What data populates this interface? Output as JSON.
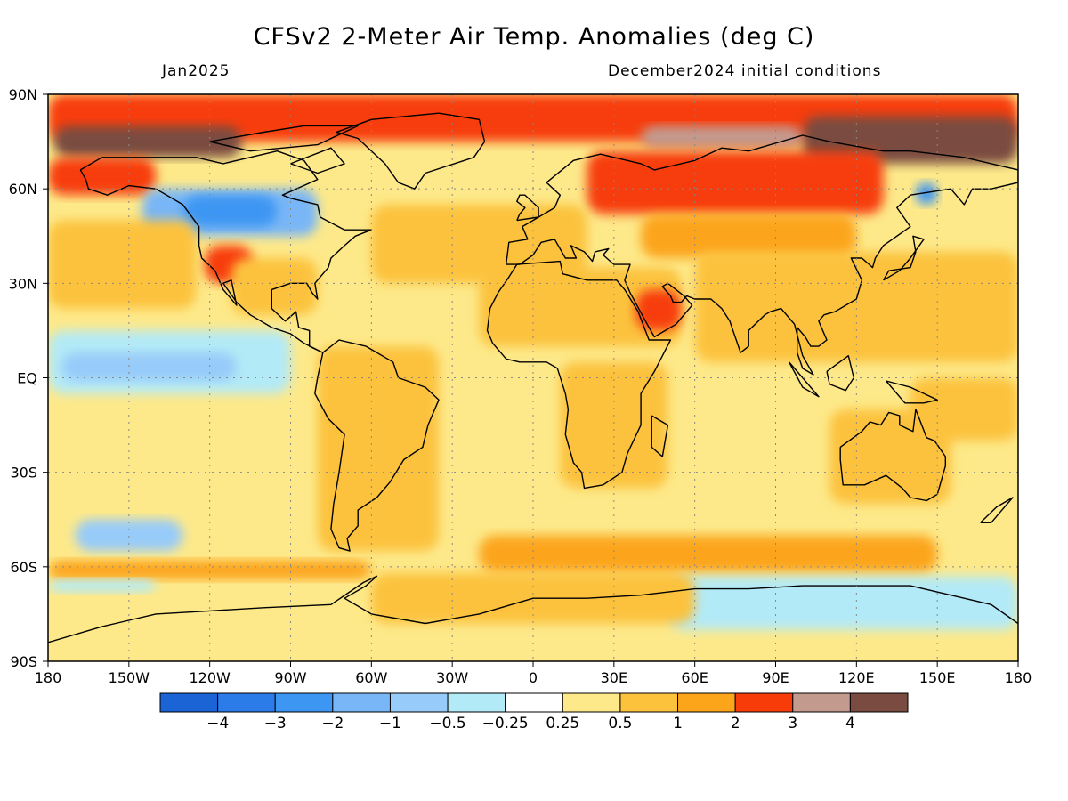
{
  "title": "CFSv2 2-Meter Air Temp. Anomalies (deg C)",
  "valid_month": "Jan2025",
  "initial_conditions": "December2024 initial conditions",
  "map": {
    "projection": "cylindrical equidistant",
    "lon_range": [
      -180,
      180
    ],
    "lat_range": [
      -90,
      90
    ],
    "lat_labels": [
      {
        "text": "90N",
        "lat": 90
      },
      {
        "text": "60N",
        "lat": 60
      },
      {
        "text": "30N",
        "lat": 30
      },
      {
        "text": "EQ",
        "lat": 0
      },
      {
        "text": "30S",
        "lat": -30
      },
      {
        "text": "60S",
        "lat": -60
      },
      {
        "text": "90S",
        "lat": -90
      }
    ],
    "lon_labels": [
      {
        "text": "180",
        "lon": -180
      },
      {
        "text": "150W",
        "lon": -150
      },
      {
        "text": "120W",
        "lon": -120
      },
      {
        "text": "90W",
        "lon": -90
      },
      {
        "text": "60W",
        "lon": -60
      },
      {
        "text": "30W",
        "lon": -30
      },
      {
        "text": "0",
        "lon": 0
      },
      {
        "text": "30E",
        "lon": 30
      },
      {
        "text": "60E",
        "lon": 60
      },
      {
        "text": "90E",
        "lon": 90
      },
      {
        "text": "120E",
        "lon": 120
      },
      {
        "text": "150E",
        "lon": 150
      },
      {
        "text": "180",
        "lon": 180
      }
    ],
    "gridlines": "dotted every 30 degrees"
  },
  "colorbar": {
    "colors": [
      "#1a64d6",
      "#2b7be8",
      "#3e96f3",
      "#78b6f7",
      "#97cbf9",
      "#b3eaf7",
      "#ffffff",
      "#fde98a",
      "#fcc23c",
      "#fca51a",
      "#f73c0a",
      "#c39a8e",
      "#7a4b40"
    ],
    "labels": [
      "-4",
      "-3",
      "-2",
      "-1",
      "-0.5",
      "-0.25",
      "0.25",
      "0.5",
      "1",
      "2",
      "3",
      "4"
    ]
  },
  "anomaly_regions": [
    {
      "lon": -180,
      "lat": 90,
      "lon2": 180,
      "lat2": 75,
      "level": 10
    },
    {
      "lon": -178,
      "lat": 80,
      "lon2": -108,
      "lat2": 70,
      "level": 12
    },
    {
      "lon": 100,
      "lat": 83,
      "lon2": 180,
      "lat2": 68,
      "level": 12
    },
    {
      "lon": 40,
      "lat": 80,
      "lon2": 100,
      "lat2": 73,
      "level": 11
    },
    {
      "lon": 20,
      "lat": 72,
      "lon2": 130,
      "lat2": 52,
      "level": 10
    },
    {
      "lon": 40,
      "lat": 52,
      "lon2": 120,
      "lat2": 38,
      "level": 9
    },
    {
      "lon": -180,
      "lat": 70,
      "lon2": -140,
      "lat2": 58,
      "level": 10
    },
    {
      "lon": -145,
      "lat": 60,
      "lon2": -80,
      "lat2": 45,
      "level": 3
    },
    {
      "lon": -130,
      "lat": 58,
      "lon2": -95,
      "lat2": 48,
      "level": 2
    },
    {
      "lon": -122,
      "lat": 42,
      "lon2": -104,
      "lat2": 30,
      "level": 10
    },
    {
      "lon": -112,
      "lat": 38,
      "lon2": -80,
      "lat2": 20,
      "level": 8
    },
    {
      "lon": -180,
      "lat": 50,
      "lon2": -125,
      "lat2": 22,
      "level": 8
    },
    {
      "lon": -60,
      "lat": 55,
      "lon2": 20,
      "lat2": 30,
      "level": 8
    },
    {
      "lon": -20,
      "lat": 35,
      "lon2": 55,
      "lat2": 10,
      "level": 8
    },
    {
      "lon": 60,
      "lat": 40,
      "lon2": 180,
      "lat2": 5,
      "level": 8
    },
    {
      "lon": 38,
      "lat": 28,
      "lon2": 55,
      "lat2": 15,
      "level": 10
    },
    {
      "lon": -180,
      "lat": 15,
      "lon2": -90,
      "lat2": -5,
      "level": 5
    },
    {
      "lon": -175,
      "lat": 8,
      "lon2": -110,
      "lat2": -1,
      "level": 4
    },
    {
      "lon": -80,
      "lat": 10,
      "lon2": -35,
      "lat2": -55,
      "level": 8
    },
    {
      "lon": 10,
      "lat": 5,
      "lon2": 50,
      "lat2": -35,
      "level": 8
    },
    {
      "lon": 110,
      "lat": -10,
      "lon2": 155,
      "lat2": -40,
      "level": 8
    },
    {
      "lon": 140,
      "lat": 0,
      "lon2": 180,
      "lat2": -20,
      "level": 8
    },
    {
      "lon": -170,
      "lat": -45,
      "lon2": -130,
      "lat2": -55,
      "level": 4
    },
    {
      "lon": -20,
      "lat": -50,
      "lon2": 150,
      "lat2": -62,
      "level": 9
    },
    {
      "lon": -180,
      "lat": -58,
      "lon2": -60,
      "lat2": -64,
      "level": 9
    },
    {
      "lon": -180,
      "lat": -64,
      "lon2": -140,
      "lat2": -68,
      "level": 5
    },
    {
      "lon": 50,
      "lat": -63,
      "lon2": 180,
      "lat2": -80,
      "level": 5
    },
    {
      "lon": -60,
      "lat": -62,
      "lon2": 60,
      "lat2": -78,
      "level": 8
    },
    {
      "lon": 142,
      "lat": 62,
      "lon2": 150,
      "lat2": 55,
      "level": 2
    }
  ],
  "land_outlines": [
    [
      [
        -168,
        66
      ],
      [
        -160,
        70
      ],
      [
        -140,
        70
      ],
      [
        -125,
        70
      ],
      [
        -115,
        68
      ],
      [
        -95,
        72
      ],
      [
        -85,
        69
      ],
      [
        -80,
        63
      ],
      [
        -93,
        58
      ],
      [
        -90,
        57
      ],
      [
        -80,
        55
      ],
      [
        -79,
        51
      ],
      [
        -70,
        47
      ],
      [
        -60,
        47
      ],
      [
        -66,
        45
      ],
      [
        -70,
        42
      ],
      [
        -75,
        38
      ],
      [
        -76,
        35
      ],
      [
        -81,
        30
      ],
      [
        -80,
        25
      ],
      [
        -82,
        27
      ],
      [
        -84,
        30
      ],
      [
        -90,
        30
      ],
      [
        -97,
        28
      ],
      [
        -97,
        22
      ],
      [
        -92,
        18
      ],
      [
        -88,
        21
      ],
      [
        -87,
        16
      ],
      [
        -83,
        15
      ],
      [
        -83,
        10
      ],
      [
        -78,
        8
      ],
      [
        -85,
        11
      ],
      [
        -90,
        14
      ],
      [
        -97,
        16
      ],
      [
        -105,
        20
      ],
      [
        -110,
        24
      ],
      [
        -115,
        30
      ],
      [
        -112,
        31
      ],
      [
        -110,
        23
      ],
      [
        -115,
        28
      ],
      [
        -118,
        34
      ],
      [
        -123,
        38
      ],
      [
        -124,
        42
      ],
      [
        -124,
        48
      ],
      [
        -130,
        55
      ],
      [
        -140,
        60
      ],
      [
        -150,
        61
      ],
      [
        -158,
        58
      ],
      [
        -165,
        60
      ],
      [
        -166,
        63
      ],
      [
        -168,
        66
      ]
    ],
    [
      [
        -78,
        8
      ],
      [
        -72,
        12
      ],
      [
        -62,
        10
      ],
      [
        -52,
        5
      ],
      [
        -50,
        0
      ],
      [
        -40,
        -3
      ],
      [
        -35,
        -7
      ],
      [
        -39,
        -15
      ],
      [
        -41,
        -22
      ],
      [
        -48,
        -26
      ],
      [
        -53,
        -33
      ],
      [
        -58,
        -38
      ],
      [
        -65,
        -42
      ],
      [
        -65,
        -47
      ],
      [
        -69,
        -51
      ],
      [
        -68,
        -55
      ],
      [
        -72,
        -54
      ],
      [
        -75,
        -48
      ],
      [
        -74,
        -40
      ],
      [
        -72,
        -30
      ],
      [
        -70,
        -18
      ],
      [
        -76,
        -13
      ],
      [
        -81,
        -5
      ],
      [
        -80,
        0
      ],
      [
        -78,
        8
      ]
    ],
    [
      [
        -6,
        36
      ],
      [
        10,
        37
      ],
      [
        11,
        33
      ],
      [
        20,
        31
      ],
      [
        31,
        31
      ],
      [
        34,
        28
      ],
      [
        39,
        21
      ],
      [
        43,
        12
      ],
      [
        51,
        12
      ],
      [
        45,
        2
      ],
      [
        40,
        -5
      ],
      [
        40,
        -15
      ],
      [
        35,
        -24
      ],
      [
        33,
        -30
      ],
      [
        26,
        -34
      ],
      [
        19,
        -35
      ],
      [
        18,
        -30
      ],
      [
        15,
        -27
      ],
      [
        12,
        -18
      ],
      [
        13,
        -10
      ],
      [
        12,
        -5
      ],
      [
        9,
        3
      ],
      [
        5,
        5
      ],
      [
        -5,
        5
      ],
      [
        -10,
        6
      ],
      [
        -15,
        11
      ],
      [
        -17,
        15
      ],
      [
        -16,
        22
      ],
      [
        -13,
        27
      ],
      [
        -9,
        32
      ],
      [
        -6,
        36
      ]
    ],
    [
      [
        -10,
        36
      ],
      [
        -9,
        43
      ],
      [
        -2,
        44
      ],
      [
        -4,
        48
      ],
      [
        2,
        51
      ],
      [
        8,
        54
      ],
      [
        10,
        58
      ],
      [
        5,
        62
      ],
      [
        15,
        69
      ],
      [
        25,
        71
      ],
      [
        40,
        68
      ],
      [
        45,
        66
      ],
      [
        60,
        69
      ],
      [
        70,
        73
      ],
      [
        80,
        72
      ],
      [
        100,
        77
      ],
      [
        110,
        75
      ],
      [
        130,
        72
      ],
      [
        140,
        72
      ],
      [
        160,
        70
      ],
      [
        175,
        67
      ],
      [
        180,
        66
      ],
      [
        180,
        62
      ],
      [
        170,
        60
      ],
      [
        163,
        60
      ],
      [
        160,
        55
      ],
      [
        155,
        60
      ],
      [
        140,
        58
      ],
      [
        135,
        54
      ],
      [
        140,
        48
      ],
      [
        130,
        42
      ],
      [
        127,
        38
      ],
      [
        126,
        35
      ],
      [
        122,
        38
      ],
      [
        118,
        38
      ],
      [
        122,
        31
      ],
      [
        120,
        25
      ],
      [
        112,
        21
      ],
      [
        108,
        20
      ],
      [
        106,
        18
      ],
      [
        109,
        12
      ],
      [
        106,
        10
      ],
      [
        103,
        10
      ],
      [
        101,
        13
      ],
      [
        98,
        16
      ],
      [
        98,
        8
      ],
      [
        100,
        3
      ],
      [
        104,
        1
      ],
      [
        100,
        7
      ],
      [
        97,
        17
      ],
      [
        92,
        22
      ],
      [
        88,
        21
      ],
      [
        86,
        20
      ],
      [
        80,
        15
      ],
      [
        80,
        10
      ],
      [
        77,
        8
      ],
      [
        73,
        18
      ],
      [
        70,
        22
      ],
      [
        66,
        25
      ],
      [
        60,
        25
      ],
      [
        57,
        26
      ],
      [
        55,
        24
      ],
      [
        52,
        24
      ],
      [
        51,
        26
      ],
      [
        48,
        29
      ],
      [
        50,
        30
      ],
      [
        56,
        26
      ],
      [
        59,
        23
      ],
      [
        53,
        17
      ],
      [
        45,
        13
      ],
      [
        43,
        16
      ],
      [
        36,
        27
      ],
      [
        34,
        31
      ],
      [
        36,
        36
      ],
      [
        30,
        36
      ],
      [
        26,
        39
      ],
      [
        28,
        41
      ],
      [
        23,
        40
      ],
      [
        22,
        37
      ],
      [
        19,
        40
      ],
      [
        14,
        42
      ],
      [
        16,
        38
      ],
      [
        12,
        38
      ],
      [
        8,
        44
      ],
      [
        3,
        43
      ],
      [
        0,
        39
      ],
      [
        -5,
        36
      ],
      [
        -10,
        36
      ]
    ],
    [
      [
        114,
        -22
      ],
      [
        114,
        -26
      ],
      [
        115,
        -34
      ],
      [
        123,
        -34
      ],
      [
        131,
        -31
      ],
      [
        137,
        -35
      ],
      [
        140,
        -38
      ],
      [
        146,
        -39
      ],
      [
        150,
        -37
      ],
      [
        153,
        -28
      ],
      [
        153,
        -25
      ],
      [
        149,
        -20
      ],
      [
        146,
        -19
      ],
      [
        142,
        -10
      ],
      [
        141,
        -17
      ],
      [
        136,
        -15
      ],
      [
        136,
        -12
      ],
      [
        132,
        -11
      ],
      [
        129,
        -15
      ],
      [
        125,
        -14
      ],
      [
        122,
        -17
      ],
      [
        114,
        -22
      ]
    ],
    [
      [
        -180,
        -84
      ],
      [
        -160,
        -79
      ],
      [
        -150,
        -77
      ],
      [
        -140,
        -75
      ],
      [
        -120,
        -74
      ],
      [
        -100,
        -73
      ],
      [
        -75,
        -72
      ],
      [
        -63,
        -65
      ],
      [
        -58,
        -63
      ],
      [
        -62,
        -66
      ],
      [
        -70,
        -70
      ],
      [
        -60,
        -75
      ],
      [
        -40,
        -78
      ],
      [
        -20,
        -75
      ],
      [
        0,
        -70
      ],
      [
        20,
        -70
      ],
      [
        40,
        -69
      ],
      [
        60,
        -67
      ],
      [
        80,
        -67
      ],
      [
        100,
        -66
      ],
      [
        120,
        -66
      ],
      [
        140,
        -66
      ],
      [
        160,
        -70
      ],
      [
        170,
        -72
      ],
      [
        180,
        -78
      ]
    ],
    [
      [
        -73,
        78
      ],
      [
        -60,
        82
      ],
      [
        -35,
        84
      ],
      [
        -20,
        82
      ],
      [
        -18,
        75
      ],
      [
        -22,
        70
      ],
      [
        -40,
        65
      ],
      [
        -44,
        60
      ],
      [
        -50,
        62
      ],
      [
        -55,
        68
      ],
      [
        -65,
        76
      ],
      [
        -73,
        78
      ]
    ],
    [
      [
        -6,
        50
      ],
      [
        2,
        51
      ],
      [
        2,
        54
      ],
      [
        -3,
        58
      ],
      [
        -5,
        58
      ],
      [
        -6,
        56
      ],
      [
        -3,
        54
      ],
      [
        -5,
        52
      ],
      [
        -6,
        50
      ]
    ],
    [
      [
        130,
        31
      ],
      [
        132,
        34
      ],
      [
        140,
        35
      ],
      [
        142,
        40
      ],
      [
        141,
        45
      ],
      [
        145,
        44
      ],
      [
        140,
        38
      ],
      [
        136,
        34
      ],
      [
        130,
        31
      ]
    ],
    [
      [
        95,
        5
      ],
      [
        100,
        0
      ],
      [
        106,
        -6
      ],
      [
        100,
        -3
      ],
      [
        95,
        5
      ]
    ],
    [
      [
        109,
        2
      ],
      [
        117,
        7
      ],
      [
        119,
        0
      ],
      [
        116,
        -4
      ],
      [
        110,
        -2
      ],
      [
        109,
        2
      ]
    ],
    [
      [
        131,
        -1
      ],
      [
        140,
        -3
      ],
      [
        150,
        -7
      ],
      [
        145,
        -8
      ],
      [
        138,
        -8
      ],
      [
        131,
        -1
      ]
    ],
    [
      [
        44,
        -12
      ],
      [
        50,
        -15
      ],
      [
        48,
        -25
      ],
      [
        44,
        -22
      ],
      [
        44,
        -12
      ]
    ],
    [
      [
        166,
        -46
      ],
      [
        172,
        -41
      ],
      [
        178,
        -38
      ],
      [
        174,
        -42
      ],
      [
        170,
        -46
      ],
      [
        166,
        -46
      ]
    ],
    [
      [
        -90,
        68
      ],
      [
        -75,
        73
      ],
      [
        -70,
        68
      ],
      [
        -80,
        65
      ],
      [
        -90,
        68
      ]
    ],
    [
      [
        -120,
        75
      ],
      [
        -100,
        78
      ],
      [
        -85,
        80
      ],
      [
        -65,
        80
      ],
      [
        -80,
        74
      ],
      [
        -105,
        72
      ],
      [
        -120,
        75
      ]
    ]
  ]
}
